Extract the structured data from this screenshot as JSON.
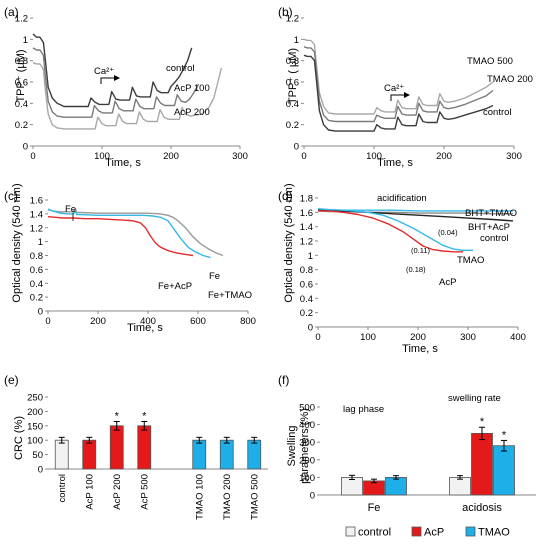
{
  "chart_data": [
    {
      "panel": "(a)",
      "type": "line",
      "xlabel": "Time, s",
      "ylabel": "TPP⁺ (μM)",
      "xlim": [
        0,
        300
      ],
      "ylim": [
        0,
        1.2
      ],
      "xticks": [
        0,
        100,
        200,
        300
      ],
      "yticks": [
        0,
        0.2,
        0.4,
        0.6,
        0.8,
        1,
        1.2
      ],
      "annotation": "Ca²⁺",
      "grid": false,
      "series": [
        {
          "name": "control",
          "color": "#3c3c3c",
          "x": [
            0,
            5,
            10,
            15,
            18,
            22,
            28,
            35,
            45,
            55,
            65,
            80,
            84,
            90,
            96,
            110,
            114,
            120,
            126,
            140,
            144,
            150,
            156,
            170,
            174,
            180,
            186,
            196,
            200,
            206,
            212,
            218,
            224,
            230
          ],
          "y": [
            1.05,
            1.02,
            1.02,
            0.97,
            0.8,
            0.55,
            0.45,
            0.4,
            0.37,
            0.37,
            0.37,
            0.37,
            0.45,
            0.41,
            0.39,
            0.39,
            0.51,
            0.44,
            0.43,
            0.43,
            0.55,
            0.47,
            0.46,
            0.46,
            0.6,
            0.52,
            0.5,
            0.5,
            0.56,
            0.6,
            0.65,
            0.72,
            0.8,
            0.92
          ]
        },
        {
          "name": "AcP 100",
          "color": "#7a7a7a",
          "x": [
            0,
            5,
            10,
            15,
            18,
            22,
            28,
            35,
            45,
            55,
            65,
            85,
            89,
            95,
            101,
            115,
            119,
            125,
            131,
            145,
            149,
            155,
            161,
            175,
            179,
            185,
            191,
            205,
            209,
            215,
            221,
            227,
            233,
            240
          ],
          "y": [
            0.92,
            0.9,
            0.9,
            0.85,
            0.65,
            0.42,
            0.32,
            0.28,
            0.27,
            0.27,
            0.27,
            0.27,
            0.38,
            0.33,
            0.31,
            0.31,
            0.42,
            0.35,
            0.33,
            0.33,
            0.44,
            0.37,
            0.35,
            0.35,
            0.46,
            0.4,
            0.38,
            0.38,
            0.48,
            0.42,
            0.41,
            0.44,
            0.5,
            0.58
          ]
        },
        {
          "name": "AcP 200",
          "color": "#a8a8a8",
          "x": [
            0,
            5,
            10,
            15,
            18,
            22,
            28,
            35,
            45,
            55,
            65,
            90,
            94,
            100,
            106,
            120,
            124,
            130,
            136,
            150,
            154,
            160,
            166,
            180,
            184,
            190,
            196,
            212,
            216,
            222,
            228,
            245,
            255,
            262,
            268,
            273
          ],
          "y": [
            0.78,
            0.77,
            0.77,
            0.72,
            0.52,
            0.3,
            0.2,
            0.17,
            0.16,
            0.16,
            0.16,
            0.16,
            0.27,
            0.21,
            0.19,
            0.19,
            0.3,
            0.23,
            0.21,
            0.21,
            0.32,
            0.25,
            0.23,
            0.23,
            0.34,
            0.27,
            0.25,
            0.25,
            0.36,
            0.3,
            0.28,
            0.3,
            0.36,
            0.45,
            0.6,
            0.73
          ]
        }
      ]
    },
    {
      "panel": "(b)",
      "type": "line",
      "xlabel": "Time, s",
      "ylabel": "TPP⁺ ( μM)",
      "xlim": [
        0,
        300
      ],
      "ylim": [
        0,
        1.2
      ],
      "xticks": [
        0,
        100,
        200,
        300
      ],
      "yticks": [
        0,
        0.2,
        0.4,
        0.6,
        0.8,
        1,
        1.2
      ],
      "annotation": "Ca²⁺",
      "grid": false,
      "series": [
        {
          "name": "TMAO 500",
          "color": "#a8a8a8",
          "x": [
            0,
            5,
            10,
            15,
            18,
            22,
            28,
            35,
            45,
            60,
            80,
            100,
            104,
            110,
            116,
            130,
            134,
            140,
            146,
            160,
            164,
            170,
            176,
            190,
            194,
            200,
            206,
            215,
            230,
            245,
            260,
            270
          ],
          "y": [
            1.0,
            0.99,
            0.99,
            0.95,
            0.75,
            0.5,
            0.37,
            0.31,
            0.3,
            0.3,
            0.3,
            0.3,
            0.36,
            0.33,
            0.32,
            0.32,
            0.43,
            0.36,
            0.35,
            0.35,
            0.46,
            0.39,
            0.38,
            0.38,
            0.49,
            0.42,
            0.41,
            0.42,
            0.45,
            0.5,
            0.55,
            0.6
          ]
        },
        {
          "name": "TMAO 200",
          "color": "#7a7a7a",
          "x": [
            0,
            5,
            10,
            15,
            18,
            22,
            28,
            35,
            45,
            60,
            80,
            100,
            104,
            110,
            116,
            130,
            134,
            140,
            146,
            160,
            164,
            170,
            176,
            190,
            194,
            200,
            206,
            215,
            230,
            245,
            260,
            270
          ],
          "y": [
            0.93,
            0.92,
            0.92,
            0.88,
            0.68,
            0.42,
            0.29,
            0.24,
            0.23,
            0.23,
            0.23,
            0.23,
            0.29,
            0.27,
            0.26,
            0.26,
            0.37,
            0.3,
            0.29,
            0.29,
            0.4,
            0.33,
            0.32,
            0.32,
            0.42,
            0.36,
            0.35,
            0.36,
            0.39,
            0.43,
            0.47,
            0.52
          ]
        },
        {
          "name": "control",
          "color": "#3c3c3c",
          "x": [
            0,
            5,
            10,
            15,
            18,
            22,
            28,
            35,
            45,
            60,
            80,
            100,
            104,
            110,
            116,
            130,
            134,
            140,
            146,
            160,
            164,
            170,
            176,
            190,
            194,
            200,
            206,
            215,
            230,
            245,
            260,
            270
          ],
          "y": [
            0.85,
            0.84,
            0.84,
            0.8,
            0.6,
            0.33,
            0.2,
            0.15,
            0.14,
            0.14,
            0.14,
            0.14,
            0.2,
            0.17,
            0.16,
            0.16,
            0.27,
            0.2,
            0.19,
            0.19,
            0.3,
            0.23,
            0.22,
            0.22,
            0.32,
            0.26,
            0.25,
            0.26,
            0.29,
            0.32,
            0.35,
            0.38
          ]
        }
      ]
    },
    {
      "panel": "(c)",
      "type": "line",
      "xlabel": "Time, s",
      "ylabel": "Optical density (540 nm)",
      "xlim": [
        0,
        800
      ],
      "ylim": [
        0,
        1.6
      ],
      "xticks": [
        0,
        200,
        400,
        600,
        800
      ],
      "yticks": [
        0,
        0.2,
        0.4,
        0.6,
        0.8,
        1,
        1.2,
        1.4,
        1.6
      ],
      "annotation": "Fe",
      "grid": false,
      "series": [
        {
          "name": "Fe",
          "color": "#9a9a9a",
          "x": [
            0,
            20,
            50,
            80,
            100,
            110,
            115,
            130,
            200,
            300,
            400,
            450,
            480,
            500,
            520,
            550,
            580,
            610,
            640,
            670,
            700
          ],
          "y": [
            1.46,
            1.44,
            1.43,
            1.43,
            1.43,
            1.47,
            1.42,
            1.42,
            1.41,
            1.41,
            1.41,
            1.4,
            1.38,
            1.35,
            1.3,
            1.2,
            1.07,
            0.97,
            0.9,
            0.84,
            0.8
          ]
        },
        {
          "name": "Fe+AcP",
          "color": "#e32b2b",
          "x": [
            0,
            30,
            60,
            100,
            150,
            200,
            250,
            300,
            340,
            370,
            390,
            410,
            430,
            450,
            480,
            510,
            540,
            560,
            580
          ],
          "y": [
            1.36,
            1.35,
            1.34,
            1.34,
            1.33,
            1.33,
            1.32,
            1.31,
            1.3,
            1.27,
            1.2,
            1.08,
            0.98,
            0.92,
            0.87,
            0.84,
            0.82,
            0.81,
            0.8
          ]
        },
        {
          "name": "Fe+TMAO",
          "color": "#35b8e8",
          "x": [
            0,
            20,
            50,
            80,
            100,
            110,
            115,
            130,
            200,
            300,
            380,
            420,
            450,
            480,
            500,
            530,
            560,
            590,
            620,
            650
          ],
          "y": [
            1.47,
            1.44,
            1.41,
            1.4,
            1.4,
            1.44,
            1.39,
            1.39,
            1.38,
            1.38,
            1.38,
            1.37,
            1.35,
            1.3,
            1.2,
            1.05,
            0.92,
            0.85,
            0.8,
            0.77
          ]
        }
      ]
    },
    {
      "panel": "(d)",
      "type": "line",
      "xlabel": "Time, s",
      "ylabel": "Optical density (540 nm)",
      "xlim": [
        0,
        400
      ],
      "ylim": [
        0,
        1.8
      ],
      "xticks": [
        0,
        100,
        200,
        300,
        400
      ],
      "yticks": [
        0,
        0.2,
        0.4,
        0.6,
        0.8,
        1,
        1.2,
        1.4,
        1.6,
        1.8
      ],
      "annotation": "acidification",
      "rate_labels": [
        "(0.04)",
        "(0.11)",
        "(0.18)"
      ],
      "grid": false,
      "series": [
        {
          "name": "BHT+TMAO",
          "color": "#35b8e8",
          "x": [
            0,
            20,
            50,
            100,
            150,
            200,
            250,
            300,
            350,
            390
          ],
          "y": [
            1.64,
            1.63,
            1.63,
            1.63,
            1.63,
            1.62,
            1.62,
            1.62,
            1.62,
            1.62
          ]
        },
        {
          "name": "BHT+AcP",
          "color": "#8a8a8a",
          "x": [
            0,
            20,
            50,
            100,
            150,
            200,
            250,
            300,
            350,
            390
          ],
          "y": [
            1.62,
            1.61,
            1.61,
            1.6,
            1.6,
            1.59,
            1.59,
            1.59,
            1.58,
            1.58
          ]
        },
        {
          "name": "control",
          "color": "#222222",
          "x": [
            0,
            20,
            50,
            100,
            150,
            200,
            250,
            300,
            350,
            390
          ],
          "y": [
            1.64,
            1.63,
            1.62,
            1.6,
            1.58,
            1.56,
            1.54,
            1.52,
            1.5,
            1.48
          ]
        },
        {
          "name": "TMAO",
          "color": "#35b8e8",
          "x": [
            0,
            20,
            50,
            100,
            130,
            160,
            190,
            210,
            230,
            250,
            270,
            290,
            310
          ],
          "y": [
            1.65,
            1.64,
            1.63,
            1.6,
            1.56,
            1.48,
            1.38,
            1.3,
            1.22,
            1.14,
            1.09,
            1.07,
            1.07
          ]
        },
        {
          "name": "AcP",
          "color": "#e32b2b",
          "x": [
            0,
            20,
            50,
            80,
            110,
            140,
            170,
            190,
            210,
            230,
            250,
            270,
            290
          ],
          "y": [
            1.62,
            1.62,
            1.6,
            1.57,
            1.52,
            1.44,
            1.33,
            1.23,
            1.13,
            1.08,
            1.06,
            1.05,
            1.05
          ]
        }
      ]
    },
    {
      "panel": "(e)",
      "type": "bar",
      "ylabel": "CRC (%)",
      "ylim": [
        0,
        250
      ],
      "yticks": [
        0,
        50,
        100,
        150,
        200,
        250
      ],
      "categories": [
        "control",
        "AcP 100",
        "AcP 200",
        "AcP 500",
        "",
        "TMAO 100",
        "TMAO 200",
        "TMAO 500"
      ],
      "values": [
        100,
        100,
        150,
        150,
        null,
        100,
        100,
        100
      ],
      "errors": [
        10,
        10,
        15,
        15,
        null,
        10,
        10,
        10
      ],
      "colors": [
        "#f2f2f2",
        "#e41a1a",
        "#e41a1a",
        "#e41a1a",
        null,
        "#1eaee8",
        "#1eaee8",
        "#1eaee8"
      ],
      "significance": [
        "",
        "",
        "*",
        "*",
        "",
        "",
        "",
        ""
      ],
      "grid": false
    },
    {
      "panel": "(f)",
      "type": "bar",
      "ylabel": "Swelling parameters (%)",
      "ylim": [
        0,
        500
      ],
      "yticks": [
        0,
        100,
        200,
        300,
        400,
        500
      ],
      "categories": [
        "Fe",
        "acidosis"
      ],
      "group_titles": [
        "lag phase",
        "swelling rate"
      ],
      "series": [
        {
          "name": "control",
          "color": "#f2f2f2",
          "values": [
            100,
            100
          ],
          "errors": [
            12,
            10
          ]
        },
        {
          "name": "AcP",
          "color": "#e41a1a",
          "values": [
            80,
            350
          ],
          "errors": [
            10,
            35
          ]
        },
        {
          "name": "TMAO",
          "color": "#1eaee8",
          "values": [
            100,
            280
          ],
          "errors": [
            10,
            30
          ]
        }
      ],
      "significance": [
        [
          "",
          "",
          ""
        ],
        [
          "",
          "*",
          "*"
        ]
      ],
      "legend": "bottom",
      "grid": false
    }
  ]
}
